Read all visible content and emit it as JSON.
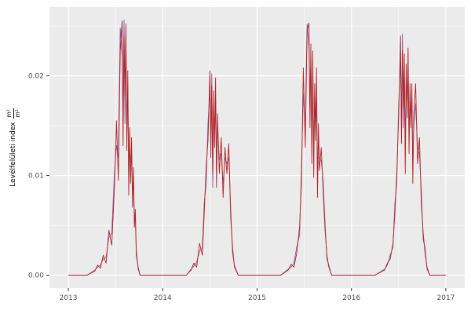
{
  "chart_data": {
    "type": "line",
    "ylabel": "Levélfelületi index",
    "units_numerator": "m²",
    "units_denominator": "m²",
    "xlabel": "",
    "x_ticks": [
      2013,
      2014,
      2015,
      2016,
      2017
    ],
    "x_tick_labels": [
      "2013",
      "2014",
      "2015",
      "2016",
      "2017"
    ],
    "y_ticks": [
      0,
      0.01,
      0.02
    ],
    "y_tick_labels": [
      "0.00",
      "0.01",
      "0.02"
    ],
    "x_minor_ticks": [
      2013.5,
      2014.5,
      2015.5,
      2016.5
    ],
    "y_minor_ticks": [
      0.005,
      0.015,
      0.025
    ],
    "xlim": [
      2012.8,
      2017.2
    ],
    "ylim": [
      -0.0013,
      0.0269
    ],
    "grid": true,
    "legend": "none",
    "panel_background": "#EBEBEB",
    "grid_major_color": "#FFFFFF",
    "grid_minor_color": "#FFFFFF",
    "tick_label_color": "#4D4D4D",
    "tick_mark_color": "#333333",
    "x": [
      2013.0,
      2013.1,
      2013.2,
      2013.28,
      2013.31,
      2013.34,
      2013.37,
      2013.4,
      2013.43,
      2013.46,
      2013.49,
      2013.51,
      2013.53,
      2013.55,
      2013.57,
      2013.58,
      2013.59,
      2013.6,
      2013.61,
      2013.62,
      2013.63,
      2013.64,
      2013.65,
      2013.66,
      2013.67,
      2013.68,
      2013.69,
      2013.7,
      2013.71,
      2013.72,
      2013.74,
      2013.76,
      2013.85,
      2014.0,
      2014.1,
      2014.25,
      2014.3,
      2014.33,
      2014.36,
      2014.39,
      2014.42,
      2014.44,
      2014.46,
      2014.48,
      2014.5,
      2014.51,
      2014.52,
      2014.53,
      2014.54,
      2014.55,
      2014.56,
      2014.57,
      2014.58,
      2014.6,
      2014.62,
      2014.64,
      2014.66,
      2014.68,
      2014.7,
      2014.72,
      2014.74,
      2014.76,
      2014.8,
      2015.0,
      2015.1,
      2015.25,
      2015.33,
      2015.36,
      2015.39,
      2015.42,
      2015.45,
      2015.47,
      2015.49,
      2015.51,
      2015.53,
      2015.55,
      2015.56,
      2015.57,
      2015.58,
      2015.59,
      2015.6,
      2015.61,
      2015.62,
      2015.63,
      2015.64,
      2015.65,
      2015.66,
      2015.68,
      2015.7,
      2015.72,
      2015.74,
      2015.76,
      2015.79,
      2016.0,
      2016.1,
      2016.25,
      2016.35,
      2016.38,
      2016.41,
      2016.44,
      2016.46,
      2016.48,
      2016.5,
      2016.52,
      2016.53,
      2016.54,
      2016.55,
      2016.56,
      2016.57,
      2016.58,
      2016.59,
      2016.6,
      2016.61,
      2016.62,
      2016.63,
      2016.64,
      2016.65,
      2016.66,
      2016.68,
      2016.7,
      2016.72,
      2016.74,
      2016.76,
      2016.78,
      2016.8,
      2016.83,
      2016.9,
      2017.0
    ],
    "series": [
      {
        "name": "purple",
        "color": "#8856A7",
        "values": [
          0,
          0,
          0,
          0.0005,
          0.0008,
          0.001,
          0.0016,
          0.0018,
          0.0038,
          0.0042,
          0.0105,
          0.013,
          0.0118,
          0.0248,
          0.022,
          0.0155,
          0.0256,
          0.0152,
          0.0238,
          0.0148,
          0.0188,
          0.0098,
          0.0132,
          0.0108,
          0.0122,
          0.0082,
          0.0094,
          0.0058,
          0.0055,
          0.0026,
          0.0006,
          0,
          0,
          0,
          0,
          0,
          0.0006,
          0.0009,
          0.0013,
          0.0024,
          0.0028,
          0.0072,
          0.0092,
          0.0152,
          0.0185,
          0.0138,
          0.0202,
          0.0088,
          0.0172,
          0.0142,
          0.0178,
          0.0105,
          0.0148,
          0.0116,
          0.0122,
          0.0092,
          0.0118,
          0.0112,
          0.0118,
          0.0068,
          0.0022,
          0.001,
          0,
          0,
          0,
          0,
          0.0006,
          0.0008,
          0.0012,
          0.0028,
          0.004,
          0.0108,
          0.0182,
          0.0148,
          0.0252,
          0.0228,
          0.0168,
          0.0215,
          0.0132,
          0.0205,
          0.0118,
          0.0178,
          0.0152,
          0.0188,
          0.0095,
          0.0138,
          0.0118,
          0.0115,
          0.0095,
          0.0052,
          0.0016,
          0.001,
          0,
          0,
          0,
          0,
          0.0006,
          0.001,
          0.002,
          0.0028,
          0.0072,
          0.0092,
          0.0172,
          0.0215,
          0.0152,
          0.0242,
          0.0148,
          0.0205,
          0.0128,
          0.0195,
          0.0172,
          0.0205,
          0.0142,
          0.0172,
          0.0162,
          0.0175,
          0.0108,
          0.0148,
          0.0172,
          0.0128,
          0.0122,
          0.0085,
          0.0035,
          0.0028,
          0.0006,
          0,
          0,
          0
        ]
      },
      {
        "name": "red",
        "color": "#B22222",
        "values": [
          0,
          0,
          0,
          0.0004,
          0.001,
          0.0007,
          0.002,
          0.0012,
          0.0045,
          0.003,
          0.009,
          0.0155,
          0.0095,
          0.0225,
          0.0255,
          0.013,
          0.024,
          0.018,
          0.0252,
          0.0125,
          0.0205,
          0.008,
          0.0148,
          0.0092,
          0.0138,
          0.0068,
          0.0108,
          0.0048,
          0.0066,
          0.002,
          0.0008,
          0,
          0,
          0,
          0,
          0,
          0.0005,
          0.0012,
          0.0008,
          0.0032,
          0.002,
          0.0062,
          0.0108,
          0.0135,
          0.0205,
          0.0118,
          0.019,
          0.0102,
          0.0185,
          0.0128,
          0.0198,
          0.0088,
          0.0162,
          0.0102,
          0.0138,
          0.0078,
          0.0128,
          0.0102,
          0.0132,
          0.0058,
          0.0028,
          0.0008,
          0,
          0,
          0,
          0,
          0.0005,
          0.0011,
          0.0008,
          0.0022,
          0.0048,
          0.0092,
          0.0208,
          0.0128,
          0.0245,
          0.0253,
          0.0148,
          0.0232,
          0.0112,
          0.0225,
          0.0098,
          0.0192,
          0.0135,
          0.0208,
          0.0078,
          0.0152,
          0.0105,
          0.0128,
          0.0085,
          0.0045,
          0.002,
          0.0008,
          0,
          0,
          0,
          0,
          0.0005,
          0.0012,
          0.0016,
          0.0032,
          0.0062,
          0.0102,
          0.0158,
          0.024,
          0.0132,
          0.0225,
          0.0168,
          0.0222,
          0.0102,
          0.0212,
          0.0158,
          0.0228,
          0.0122,
          0.0192,
          0.0148,
          0.0192,
          0.0092,
          0.0162,
          0.0192,
          0.0112,
          0.0138,
          0.0072,
          0.0042,
          0.0022,
          0.0008,
          0,
          0,
          0
        ]
      }
    ]
  }
}
